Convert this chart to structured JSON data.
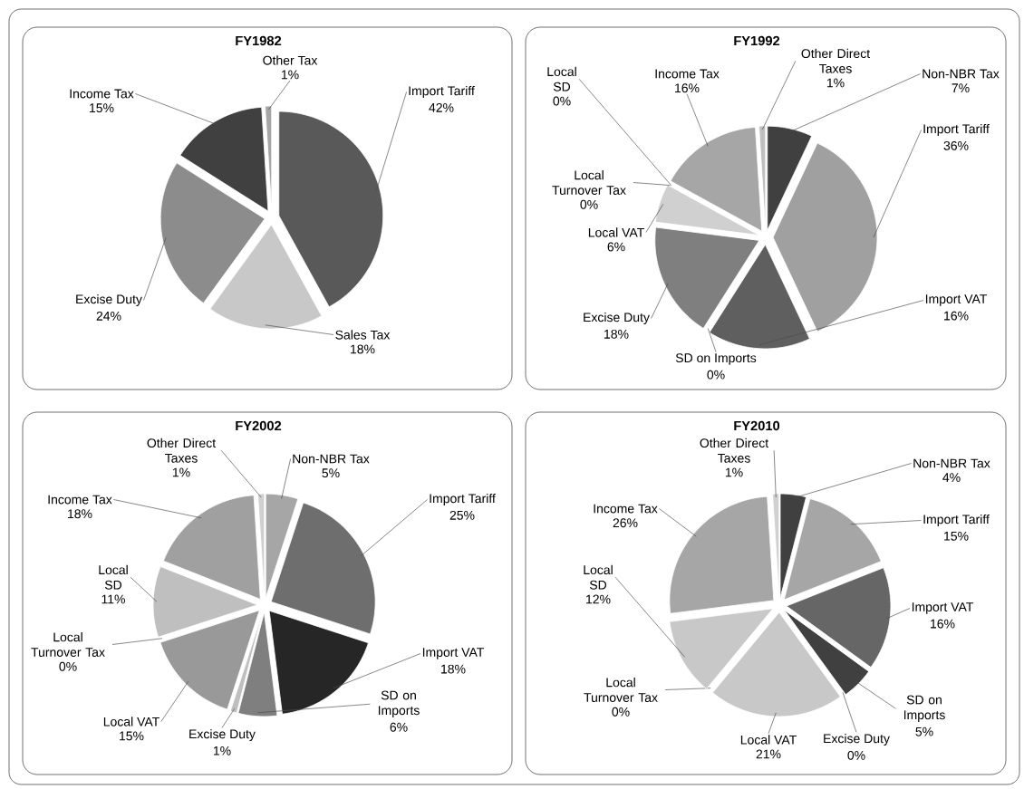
{
  "chart_data": [
    {
      "type": "pie",
      "title": "FY1982",
      "categories": [
        "Import Tariff",
        "Sales Tax",
        "Excise Duty",
        "Income Tax",
        "Other Tax"
      ],
      "values": [
        42,
        18,
        24,
        15,
        1
      ],
      "value_labels": [
        "42%",
        "18%",
        "24%",
        "15%",
        "1%"
      ],
      "colors": [
        "#595959",
        "#c8c8c8",
        "#8c8c8c",
        "#404040",
        "#a6a6a6"
      ]
    },
    {
      "type": "pie",
      "title": "FY1992",
      "categories": [
        "Non-NBR Tax",
        "Import Tariff",
        "Import VAT",
        "SD on Imports",
        "Excise Duty",
        "Local VAT",
        "Local Turnover Tax",
        "Local SD",
        "Income Tax",
        "Other Direct Taxes"
      ],
      "values": [
        7,
        36,
        16,
        0,
        18,
        6,
        0,
        0,
        16,
        1
      ],
      "value_labels": [
        "7%",
        "36%",
        "16%",
        "0%",
        "18%",
        "6%",
        "0%",
        "0%",
        "16%",
        "1%"
      ],
      "colors": [
        "#404040",
        "#a0a0a0",
        "#5f5f5f",
        "#d0d0d0",
        "#7f7f7f",
        "#d0d0d0",
        "#888888",
        "#666666",
        "#a6a6a6",
        "#bfbfbf"
      ]
    },
    {
      "type": "pie",
      "title": "FY2002",
      "categories": [
        "Non-NBR Tax",
        "Import Tariff",
        "Import VAT",
        "SD on Imports",
        "Excise Duty",
        "Local VAT",
        "Local Turnover Tax",
        "Local SD",
        "Income Tax",
        "Other Direct Taxes"
      ],
      "values": [
        5,
        25,
        18,
        6,
        1,
        15,
        0,
        11,
        18,
        1
      ],
      "value_labels": [
        "5%",
        "25%",
        "18%",
        "6%",
        "1%",
        "15%",
        "0%",
        "11%",
        "18%",
        "1%"
      ],
      "colors": [
        "#a6a6a6",
        "#6e6e6e",
        "#262626",
        "#7f7f7f",
        "#bfbfbf",
        "#999999",
        "#555555",
        "#bfbfbf",
        "#a0a0a0",
        "#d0d0d0"
      ]
    },
    {
      "type": "pie",
      "title": "FY2010",
      "categories": [
        "Non-NBR Tax",
        "Import Tariff",
        "Import VAT",
        "SD on Imports",
        "Excise Duty",
        "Local VAT",
        "Local Turnover Tax",
        "Local SD",
        "Income Tax",
        "Other Direct Taxes"
      ],
      "values": [
        4,
        15,
        16,
        5,
        0,
        21,
        0,
        12,
        26,
        1
      ],
      "value_labels": [
        "4%",
        "15%",
        "16%",
        "5%",
        "0%",
        "21%",
        "0%",
        "12%",
        "26%",
        "1%"
      ],
      "colors": [
        "#404040",
        "#a6a6a6",
        "#666666",
        "#404040",
        "#888888",
        "#c8c8c8",
        "#555555",
        "#c8c8c8",
        "#a6a6a6",
        "#d0d0d0"
      ]
    }
  ]
}
